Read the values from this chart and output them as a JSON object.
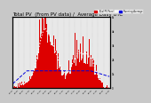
{
  "title": "Total PV  (From PV data) /  Average Daily UTC",
  "title_fontsize": 4.0,
  "bg_color": "#c8c8c8",
  "plot_bg_color": "#e8e8e8",
  "bar_color": "#dd0000",
  "avg_line_color": "#ffffff",
  "avg_line_color2": "#0000dd",
  "legend_labels": [
    "Total PV Panel",
    "Running Average"
  ],
  "legend_colors": [
    "#dd0000",
    "#0000dd"
  ],
  "ylim": [
    0,
    5000
  ],
  "yticks": [
    0,
    1000,
    2000,
    3000,
    4000,
    5000
  ],
  "ytick_labels": [
    "0",
    "1k",
    "2k",
    "3k",
    "4k",
    "5k"
  ],
  "n_bars": 200
}
